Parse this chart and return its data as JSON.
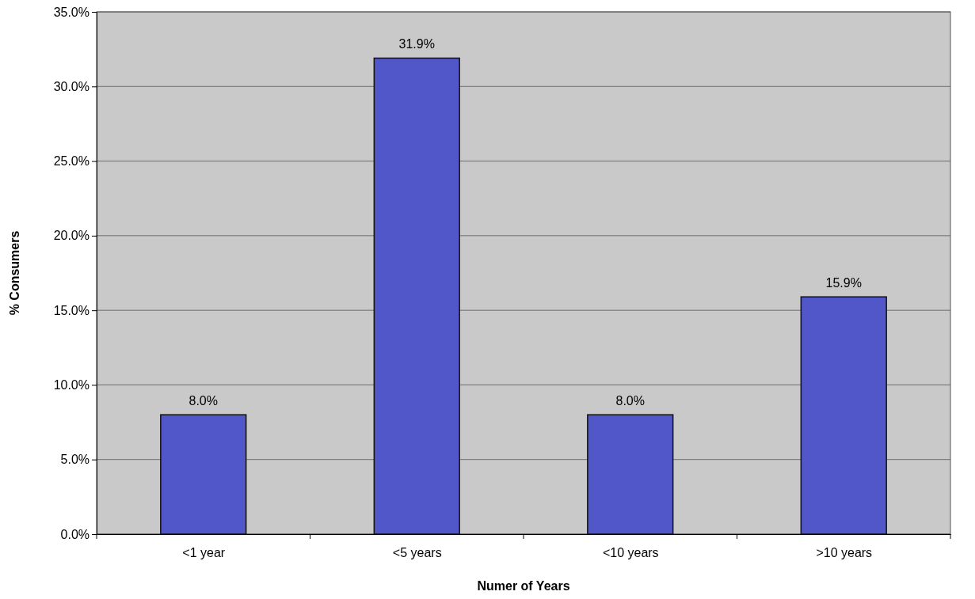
{
  "chart_data": {
    "type": "bar",
    "xlabel": "Numer of Years",
    "ylabel": "% Consumers",
    "categories": [
      "<1 year",
      "<5 years",
      "<10 years",
      ">10 years"
    ],
    "values": [
      8.0,
      31.9,
      8.0,
      15.9
    ],
    "value_labels": [
      "8.0%",
      "31.9%",
      "8.0%",
      "15.9%"
    ],
    "color": "#5157c9",
    "ylim": [
      0,
      35
    ],
    "yticks": [
      {
        "value": 0,
        "label": "0.0%"
      },
      {
        "value": 5,
        "label": "5.0%"
      },
      {
        "value": 10,
        "label": "10.0%"
      },
      {
        "value": 15,
        "label": "15.0%"
      },
      {
        "value": 20,
        "label": "20.0%"
      },
      {
        "value": 25,
        "label": "25.0%"
      },
      {
        "value": 30,
        "label": "30.0%"
      },
      {
        "value": 35,
        "label": "35.0%"
      }
    ],
    "grid": "y"
  }
}
